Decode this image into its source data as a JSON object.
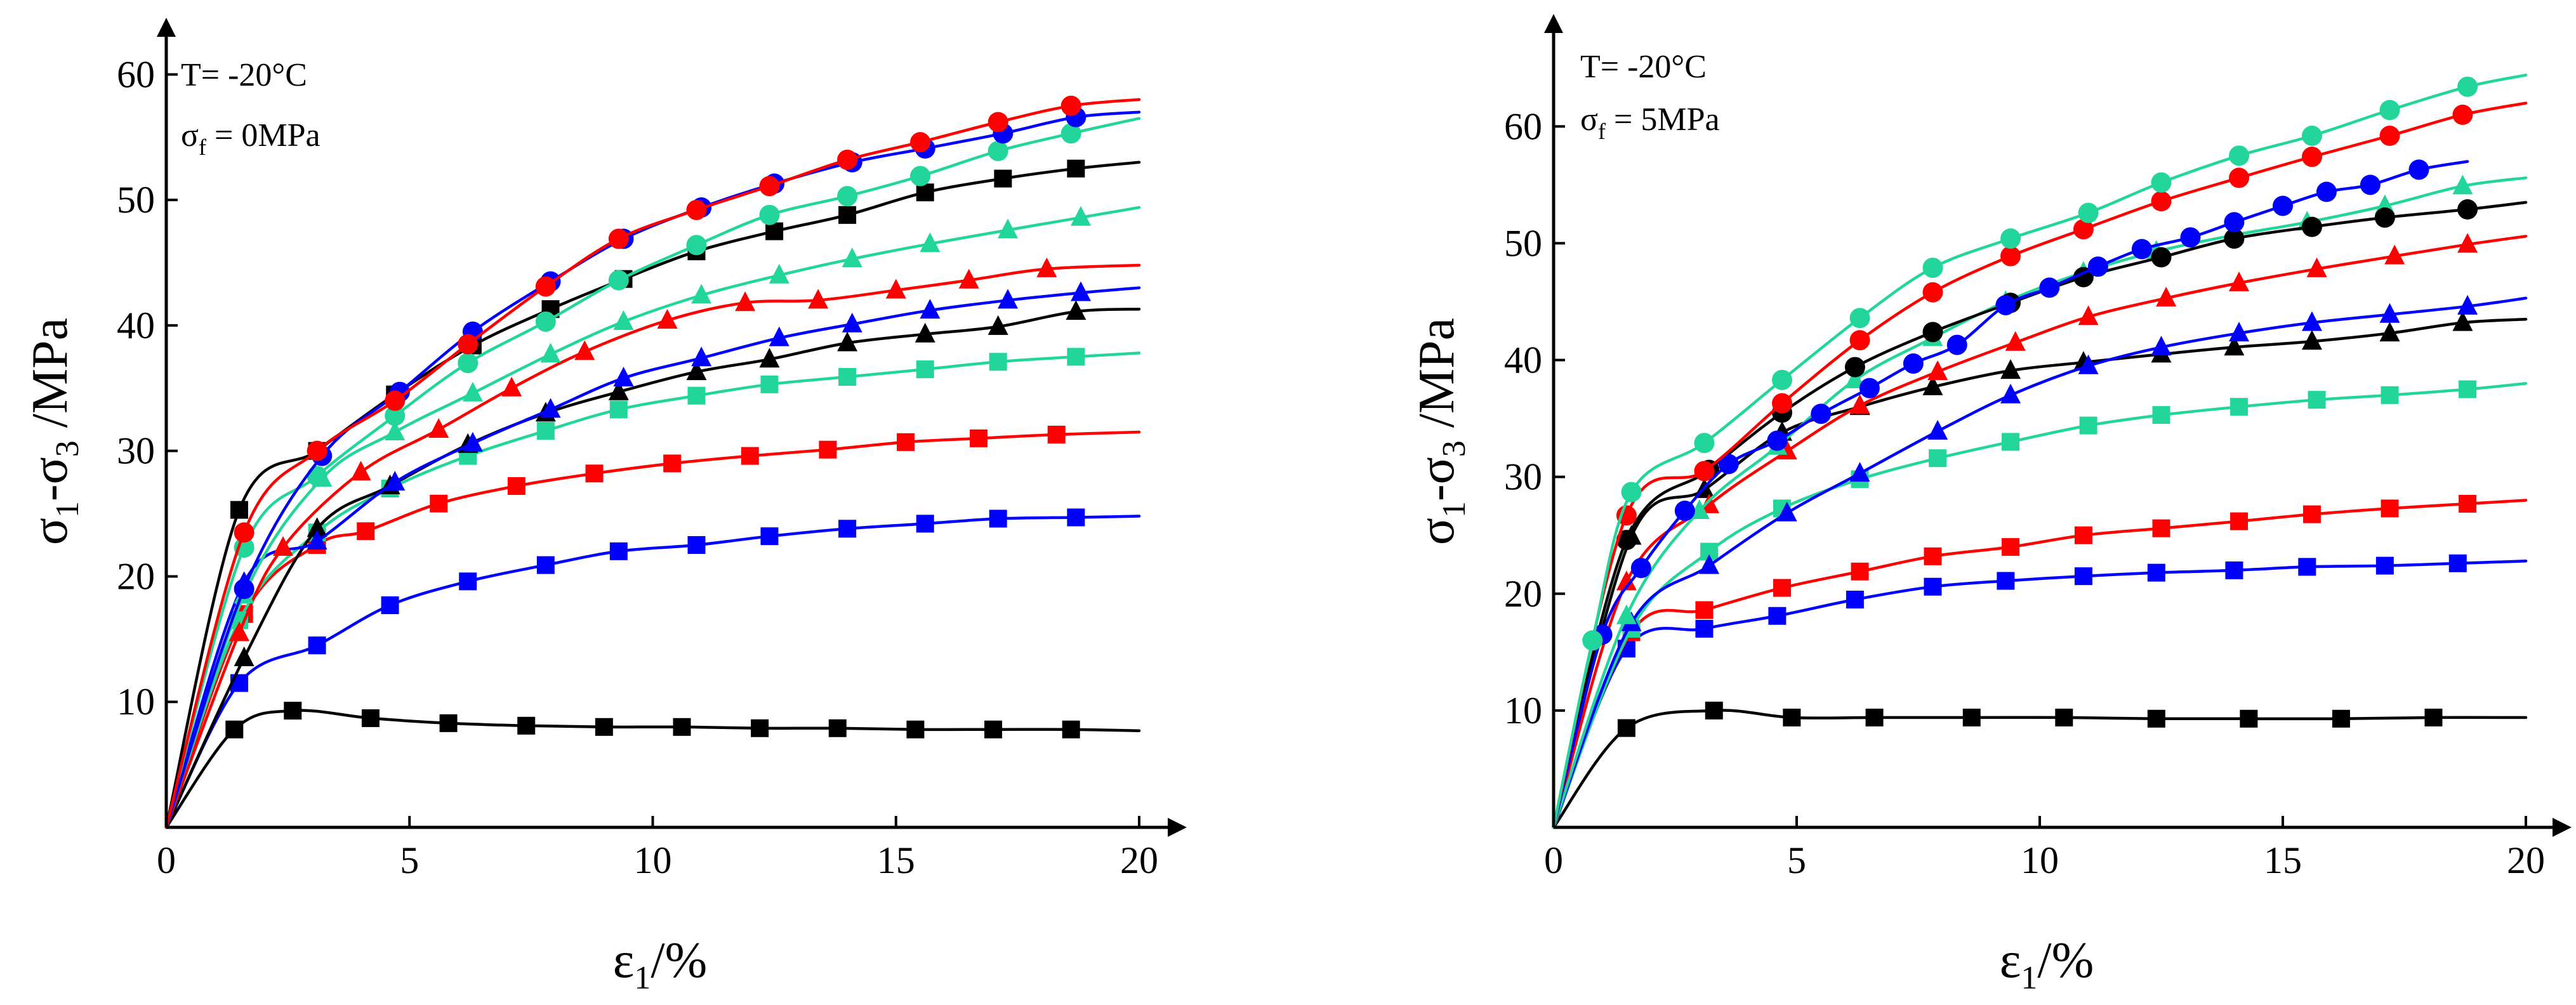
{
  "colors": {
    "black": "#000000",
    "red": "#ff0000",
    "blue": "#0000ff",
    "green": "#22d59a"
  },
  "chart_data": [
    {
      "type": "line",
      "title": "",
      "annotation": {
        "line1": "T= -20°C",
        "line2_sym": "σ",
        "line2_sub": "f",
        "line2_rest": " = 0MPa"
      },
      "xlabel": {
        "sym": "ε",
        "sub": "1",
        "rest": "/%"
      },
      "ylabel": {
        "s1": "σ",
        "sub1": "1",
        "dash": "-σ",
        "sub3": "3",
        "rest": " /MPa"
      },
      "xlim": [
        0,
        20
      ],
      "ylim": [
        0,
        63
      ],
      "xticks": [
        0,
        5,
        10,
        15,
        20
      ],
      "xtick_labels": [
        "0",
        "5",
        "10",
        "15",
        "20"
      ],
      "yticks": [
        10,
        20,
        30,
        40,
        50,
        60
      ],
      "ytick_labels": [
        "10",
        "20",
        "30",
        "40",
        "50",
        "60"
      ],
      "series": [
        {
          "name": "black-square-low",
          "color": "black",
          "marker": "square",
          "x": [
            0,
            1.4,
            2.6,
            4.2,
            5.8,
            7.4,
            9.0,
            10.6,
            12.2,
            13.8,
            15.4,
            17.0,
            18.6,
            20
          ],
          "y": [
            0,
            7.8,
            9.3,
            8.7,
            8.3,
            8.1,
            8.0,
            8.0,
            7.9,
            7.9,
            7.8,
            7.8,
            7.8,
            7.7
          ]
        },
        {
          "name": "blue-square",
          "color": "blue",
          "marker": "square",
          "x": [
            0,
            1.5,
            3.1,
            4.6,
            6.2,
            7.8,
            9.3,
            10.9,
            12.4,
            14.0,
            15.6,
            17.1,
            18.7,
            20
          ],
          "y": [
            0,
            11.5,
            14.5,
            17.7,
            19.6,
            20.9,
            22.0,
            22.5,
            23.2,
            23.8,
            24.2,
            24.6,
            24.7,
            24.8
          ]
        },
        {
          "name": "red-square",
          "color": "red",
          "marker": "square",
          "x": [
            0,
            1.6,
            3.1,
            4.1,
            5.6,
            7.2,
            8.8,
            10.4,
            12.0,
            13.6,
            15.2,
            16.7,
            18.3,
            20
          ],
          "y": [
            0,
            17.0,
            22.5,
            23.6,
            25.8,
            27.2,
            28.2,
            29.0,
            29.6,
            30.1,
            30.7,
            31.0,
            31.3,
            31.5
          ]
        },
        {
          "name": "green-square",
          "color": "green",
          "marker": "square",
          "x": [
            0,
            1.5,
            3.1,
            4.6,
            6.2,
            7.8,
            9.3,
            10.9,
            12.4,
            14.0,
            15.6,
            17.1,
            18.7,
            20
          ],
          "y": [
            0,
            16.5,
            23.5,
            27.0,
            29.6,
            31.6,
            33.3,
            34.4,
            35.3,
            35.9,
            36.5,
            37.1,
            37.5,
            37.8
          ]
        },
        {
          "name": "black-triangle",
          "color": "black",
          "marker": "triangle",
          "x": [
            0,
            1.6,
            3.1,
            4.6,
            6.2,
            7.8,
            9.3,
            10.9,
            12.4,
            14.0,
            15.6,
            17.1,
            18.7,
            20
          ],
          "y": [
            0,
            13.5,
            23.8,
            27.2,
            30.5,
            33.0,
            34.7,
            36.3,
            37.3,
            38.6,
            39.3,
            39.9,
            41.1,
            41.3
          ]
        },
        {
          "name": "blue-triangle",
          "color": "blue",
          "marker": "triangle",
          "x": [
            0,
            1.6,
            3.1,
            4.7,
            6.3,
            7.9,
            9.4,
            11.0,
            12.6,
            14.1,
            15.7,
            17.3,
            18.8,
            20
          ],
          "y": [
            0,
            19.5,
            22.8,
            27.5,
            30.6,
            33.3,
            35.8,
            37.4,
            39.0,
            40.1,
            41.2,
            42.0,
            42.6,
            43.0
          ]
        },
        {
          "name": "red-triangle",
          "color": "red",
          "marker": "triangle",
          "x": [
            0,
            1.5,
            2.4,
            4.0,
            5.6,
            7.1,
            8.6,
            10.3,
            11.9,
            13.4,
            15.0,
            16.5,
            18.1,
            20
          ],
          "y": [
            0,
            15.5,
            22.3,
            28.3,
            31.7,
            35.0,
            37.9,
            40.4,
            41.8,
            42.0,
            42.8,
            43.6,
            44.5,
            44.8
          ]
        },
        {
          "name": "green-triangle",
          "color": "green",
          "marker": "triangle",
          "x": [
            0,
            1.6,
            3.2,
            4.7,
            6.3,
            7.9,
            9.4,
            11.0,
            12.6,
            14.1,
            15.7,
            17.3,
            18.8,
            20
          ],
          "y": [
            0,
            18.5,
            27.8,
            31.5,
            34.6,
            37.7,
            40.3,
            42.4,
            44.0,
            45.3,
            46.5,
            47.6,
            48.6,
            49.4
          ]
        },
        {
          "name": "black-square-high",
          "color": "black",
          "marker": "square",
          "x": [
            0,
            1.5,
            3.1,
            4.7,
            6.3,
            7.9,
            9.4,
            10.9,
            12.5,
            14.0,
            15.6,
            17.2,
            18.7,
            20
          ],
          "y": [
            0,
            25.3,
            30.0,
            34.5,
            38.4,
            41.3,
            43.7,
            45.9,
            47.5,
            48.8,
            50.6,
            51.7,
            52.5,
            53.0
          ]
        },
        {
          "name": "green-circle",
          "color": "green",
          "marker": "circle",
          "x": [
            0,
            1.6,
            3.1,
            4.7,
            6.2,
            7.8,
            9.3,
            10.9,
            12.4,
            14.0,
            15.5,
            17.1,
            18.6,
            20
          ],
          "y": [
            0,
            22.3,
            28.0,
            32.8,
            37.0,
            40.3,
            43.6,
            46.4,
            48.8,
            50.3,
            51.9,
            53.9,
            55.3,
            56.5
          ]
        },
        {
          "name": "blue-circle",
          "color": "blue",
          "marker": "circle",
          "x": [
            0,
            1.6,
            3.2,
            4.8,
            6.3,
            7.9,
            9.4,
            11.0,
            12.5,
            14.1,
            15.6,
            17.2,
            18.7,
            20
          ],
          "y": [
            0,
            19.0,
            29.6,
            34.7,
            39.5,
            43.5,
            46.9,
            49.4,
            51.3,
            53.0,
            54.1,
            55.3,
            56.6,
            57.0
          ]
        },
        {
          "name": "red-circle",
          "color": "red",
          "marker": "circle",
          "x": [
            0,
            1.6,
            3.1,
            4.7,
            6.2,
            7.8,
            9.3,
            10.9,
            12.4,
            14.0,
            15.5,
            17.1,
            18.6,
            20
          ],
          "y": [
            0,
            23.5,
            30.0,
            34.0,
            38.5,
            43.1,
            46.9,
            49.2,
            51.1,
            53.2,
            54.6,
            56.2,
            57.5,
            58.0
          ]
        }
      ]
    },
    {
      "type": "line",
      "title": "",
      "annotation": {
        "line1": "T= -20°C",
        "line2_sym": "σ",
        "line2_sub": "f",
        "line2_rest": " = 5MPa"
      },
      "xlabel": {
        "sym": "ε",
        "sub": "1",
        "rest": "/%"
      },
      "ylabel": {
        "s1": "σ",
        "sub1": "1",
        "dash": "-σ",
        "sub3": "3",
        "rest": " /MPa"
      },
      "xlim": [
        0,
        20
      ],
      "ylim": [
        0,
        68
      ],
      "xticks": [
        0,
        5,
        10,
        15,
        20
      ],
      "xtick_labels": [
        "0",
        "5",
        "10",
        "15",
        "20"
      ],
      "yticks": [
        10,
        20,
        30,
        40,
        50,
        60
      ],
      "ytick_labels": [
        "10",
        "20",
        "30",
        "40",
        "50",
        "60"
      ],
      "series": [
        {
          "name": "black-square-low",
          "color": "black",
          "marker": "square",
          "x": [
            0,
            1.5,
            3.3,
            4.9,
            6.6,
            8.6,
            10.5,
            12.4,
            14.3,
            16.2,
            18.1,
            20
          ],
          "y": [
            0,
            8.5,
            10.0,
            9.4,
            9.4,
            9.4,
            9.4,
            9.3,
            9.3,
            9.3,
            9.4,
            9.4
          ]
        },
        {
          "name": "blue-square",
          "color": "blue",
          "marker": "square",
          "x": [
            0,
            1.5,
            3.1,
            4.6,
            6.2,
            7.8,
            9.3,
            10.9,
            12.4,
            14.0,
            15.5,
            17.1,
            18.6,
            20
          ],
          "y": [
            0,
            15.3,
            17.0,
            18.1,
            19.5,
            20.6,
            21.1,
            21.5,
            21.8,
            22.0,
            22.3,
            22.4,
            22.6,
            22.8
          ]
        },
        {
          "name": "red-square",
          "color": "red",
          "marker": "square",
          "x": [
            0,
            1.6,
            3.1,
            4.7,
            6.3,
            7.8,
            9.4,
            10.9,
            12.5,
            14.1,
            15.6,
            17.2,
            18.8,
            20
          ],
          "y": [
            0,
            16.7,
            18.6,
            20.5,
            21.9,
            23.2,
            24.0,
            25.0,
            25.6,
            26.2,
            26.8,
            27.3,
            27.7,
            28.0
          ]
        },
        {
          "name": "green-square",
          "color": "green",
          "marker": "square",
          "x": [
            0,
            1.6,
            3.2,
            4.7,
            6.3,
            7.9,
            9.4,
            11.0,
            12.5,
            14.1,
            15.7,
            17.2,
            18.8,
            20
          ],
          "y": [
            0,
            17.0,
            23.6,
            27.3,
            29.8,
            31.6,
            33.0,
            34.4,
            35.3,
            36.0,
            36.6,
            37.0,
            37.5,
            38.0
          ]
        },
        {
          "name": "black-triangle",
          "color": "black",
          "marker": "triangle",
          "x": [
            0,
            1.6,
            3.1,
            4.7,
            6.3,
            7.8,
            9.4,
            10.9,
            12.5,
            14.0,
            15.6,
            17.2,
            18.7,
            20
          ],
          "y": [
            0,
            24.9,
            28.9,
            33.8,
            36.0,
            37.7,
            39.1,
            39.8,
            40.5,
            41.1,
            41.6,
            42.3,
            43.2,
            43.5
          ]
        },
        {
          "name": "blue-triangle",
          "color": "blue",
          "marker": "triangle",
          "x": [
            0,
            1.6,
            3.2,
            4.8,
            6.3,
            7.9,
            9.4,
            11.0,
            12.5,
            14.1,
            15.6,
            17.2,
            18.8,
            20
          ],
          "y": [
            0,
            17.5,
            22.4,
            26.9,
            30.3,
            33.9,
            37.0,
            39.5,
            41.1,
            42.3,
            43.2,
            43.9,
            44.6,
            45.3
          ]
        },
        {
          "name": "red-triangle",
          "color": "red",
          "marker": "triangle",
          "x": [
            0,
            1.5,
            3.2,
            4.8,
            6.3,
            7.9,
            9.5,
            11.0,
            12.6,
            14.1,
            15.7,
            17.3,
            18.8,
            20
          ],
          "y": [
            0,
            21.0,
            27.6,
            32.2,
            36.1,
            39.0,
            41.5,
            43.7,
            45.3,
            46.6,
            47.8,
            48.9,
            49.9,
            50.6
          ]
        },
        {
          "name": "green-triangle",
          "color": "green",
          "marker": "triangle",
          "x": [
            0,
            1.5,
            3.0,
            4.6,
            6.2,
            7.8,
            9.3,
            10.9,
            12.4,
            14.0,
            15.5,
            17.1,
            18.7,
            20
          ],
          "y": [
            0,
            18.1,
            27.1,
            32.6,
            38.3,
            41.9,
            45.0,
            47.5,
            49.3,
            50.7,
            51.8,
            53.2,
            54.9,
            55.6
          ]
        },
        {
          "name": "black-circle",
          "color": "black",
          "marker": "circle",
          "x": [
            0,
            1.5,
            3.2,
            4.7,
            6.2,
            7.8,
            9.4,
            10.9,
            12.5,
            14.0,
            15.6,
            17.1,
            18.8,
            20
          ],
          "y": [
            0,
            24.6,
            30.6,
            35.5,
            39.4,
            42.4,
            44.9,
            47.1,
            48.8,
            50.4,
            51.4,
            52.2,
            52.9,
            53.5
          ]
        },
        {
          "name": "blue-circle",
          "color": "blue",
          "marker": "circle",
          "x": [
            0,
            1.0,
            1.8,
            2.7,
            3.6,
            4.6,
            5.5,
            6.5,
            7.4,
            8.3,
            9.3,
            10.2,
            11.2,
            12.1,
            13.1,
            14.0,
            15.0,
            15.9,
            16.8,
            17.8,
            18.8
          ],
          "y": [
            0,
            16.5,
            22.2,
            27.1,
            31.1,
            33.1,
            35.4,
            37.6,
            39.7,
            41.3,
            44.7,
            46.2,
            48.0,
            49.5,
            50.5,
            51.8,
            53.2,
            54.4,
            55.0,
            56.3,
            57.0
          ]
        },
        {
          "name": "red-circle",
          "color": "red",
          "marker": "circle",
          "x": [
            0,
            1.5,
            3.1,
            4.7,
            6.3,
            7.8,
            9.4,
            10.9,
            12.5,
            14.1,
            15.6,
            17.2,
            18.7,
            20
          ],
          "y": [
            0,
            26.7,
            30.5,
            36.3,
            41.7,
            45.8,
            48.9,
            51.2,
            53.6,
            55.6,
            57.4,
            59.2,
            61.0,
            62.0
          ]
        },
        {
          "name": "green-circle",
          "color": "green",
          "marker": "circle",
          "x": [
            0,
            0.8,
            1.6,
            3.1,
            4.7,
            6.3,
            7.8,
            9.4,
            11.0,
            12.5,
            14.1,
            15.6,
            17.2,
            18.8,
            20
          ],
          "y": [
            0,
            16.0,
            28.7,
            32.9,
            38.3,
            43.6,
            47.9,
            50.4,
            52.6,
            55.2,
            57.5,
            59.2,
            61.4,
            63.4,
            64.4
          ]
        }
      ]
    }
  ]
}
